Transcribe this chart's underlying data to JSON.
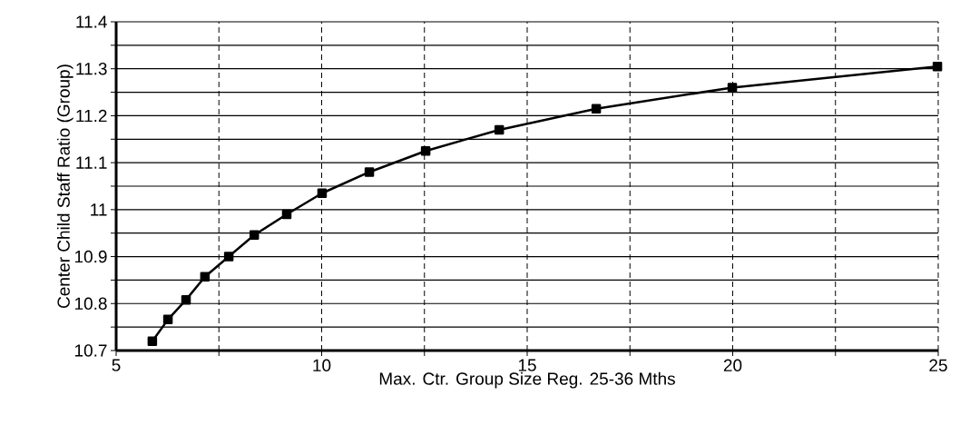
{
  "chart_data": {
    "type": "line",
    "xlabel": "Max. Ctr. Group Size Reg. 25-36 Mths",
    "ylabel": "Center Child Staff Ratio (Group)",
    "x": [
      5.88,
      6.26,
      6.7,
      7.16,
      7.74,
      8.36,
      9.15,
      10.01,
      11.16,
      12.53,
      14.32,
      16.68,
      19.99,
      24.98
    ],
    "series": [
      {
        "color": "#000000",
        "values": [
          10.72,
          10.766,
          10.808,
          10.857,
          10.9,
          10.946,
          10.99,
          11.035,
          11.08,
          11.125,
          11.17,
          11.215,
          11.26,
          11.305
        ]
      }
    ],
    "xlim": [
      5,
      25
    ],
    "xticks": [
      5,
      {
        "value": 7.5,
        "label": null
      },
      10,
      {
        "value": 12.5,
        "label": null
      },
      15,
      {
        "value": 17.5,
        "label": null
      },
      20,
      {
        "value": 22.5,
        "label": null
      },
      25
    ],
    "ylim": [
      10.7,
      11.4
    ],
    "yticks": [
      10.7,
      {
        "value": 10.75,
        "label": null
      },
      10.8,
      {
        "value": 10.85,
        "label": null
      },
      10.9,
      {
        "value": 10.95,
        "label": null
      },
      11,
      {
        "value": 11.05,
        "label": null
      },
      11.1,
      {
        "value": 11.15,
        "label": null
      },
      11.2,
      {
        "value": 11.25,
        "label": null
      },
      11.3,
      {
        "value": 11.35,
        "label": null
      },
      11.4
    ],
    "grid": true,
    "marker": "square",
    "line_style": "solid"
  }
}
